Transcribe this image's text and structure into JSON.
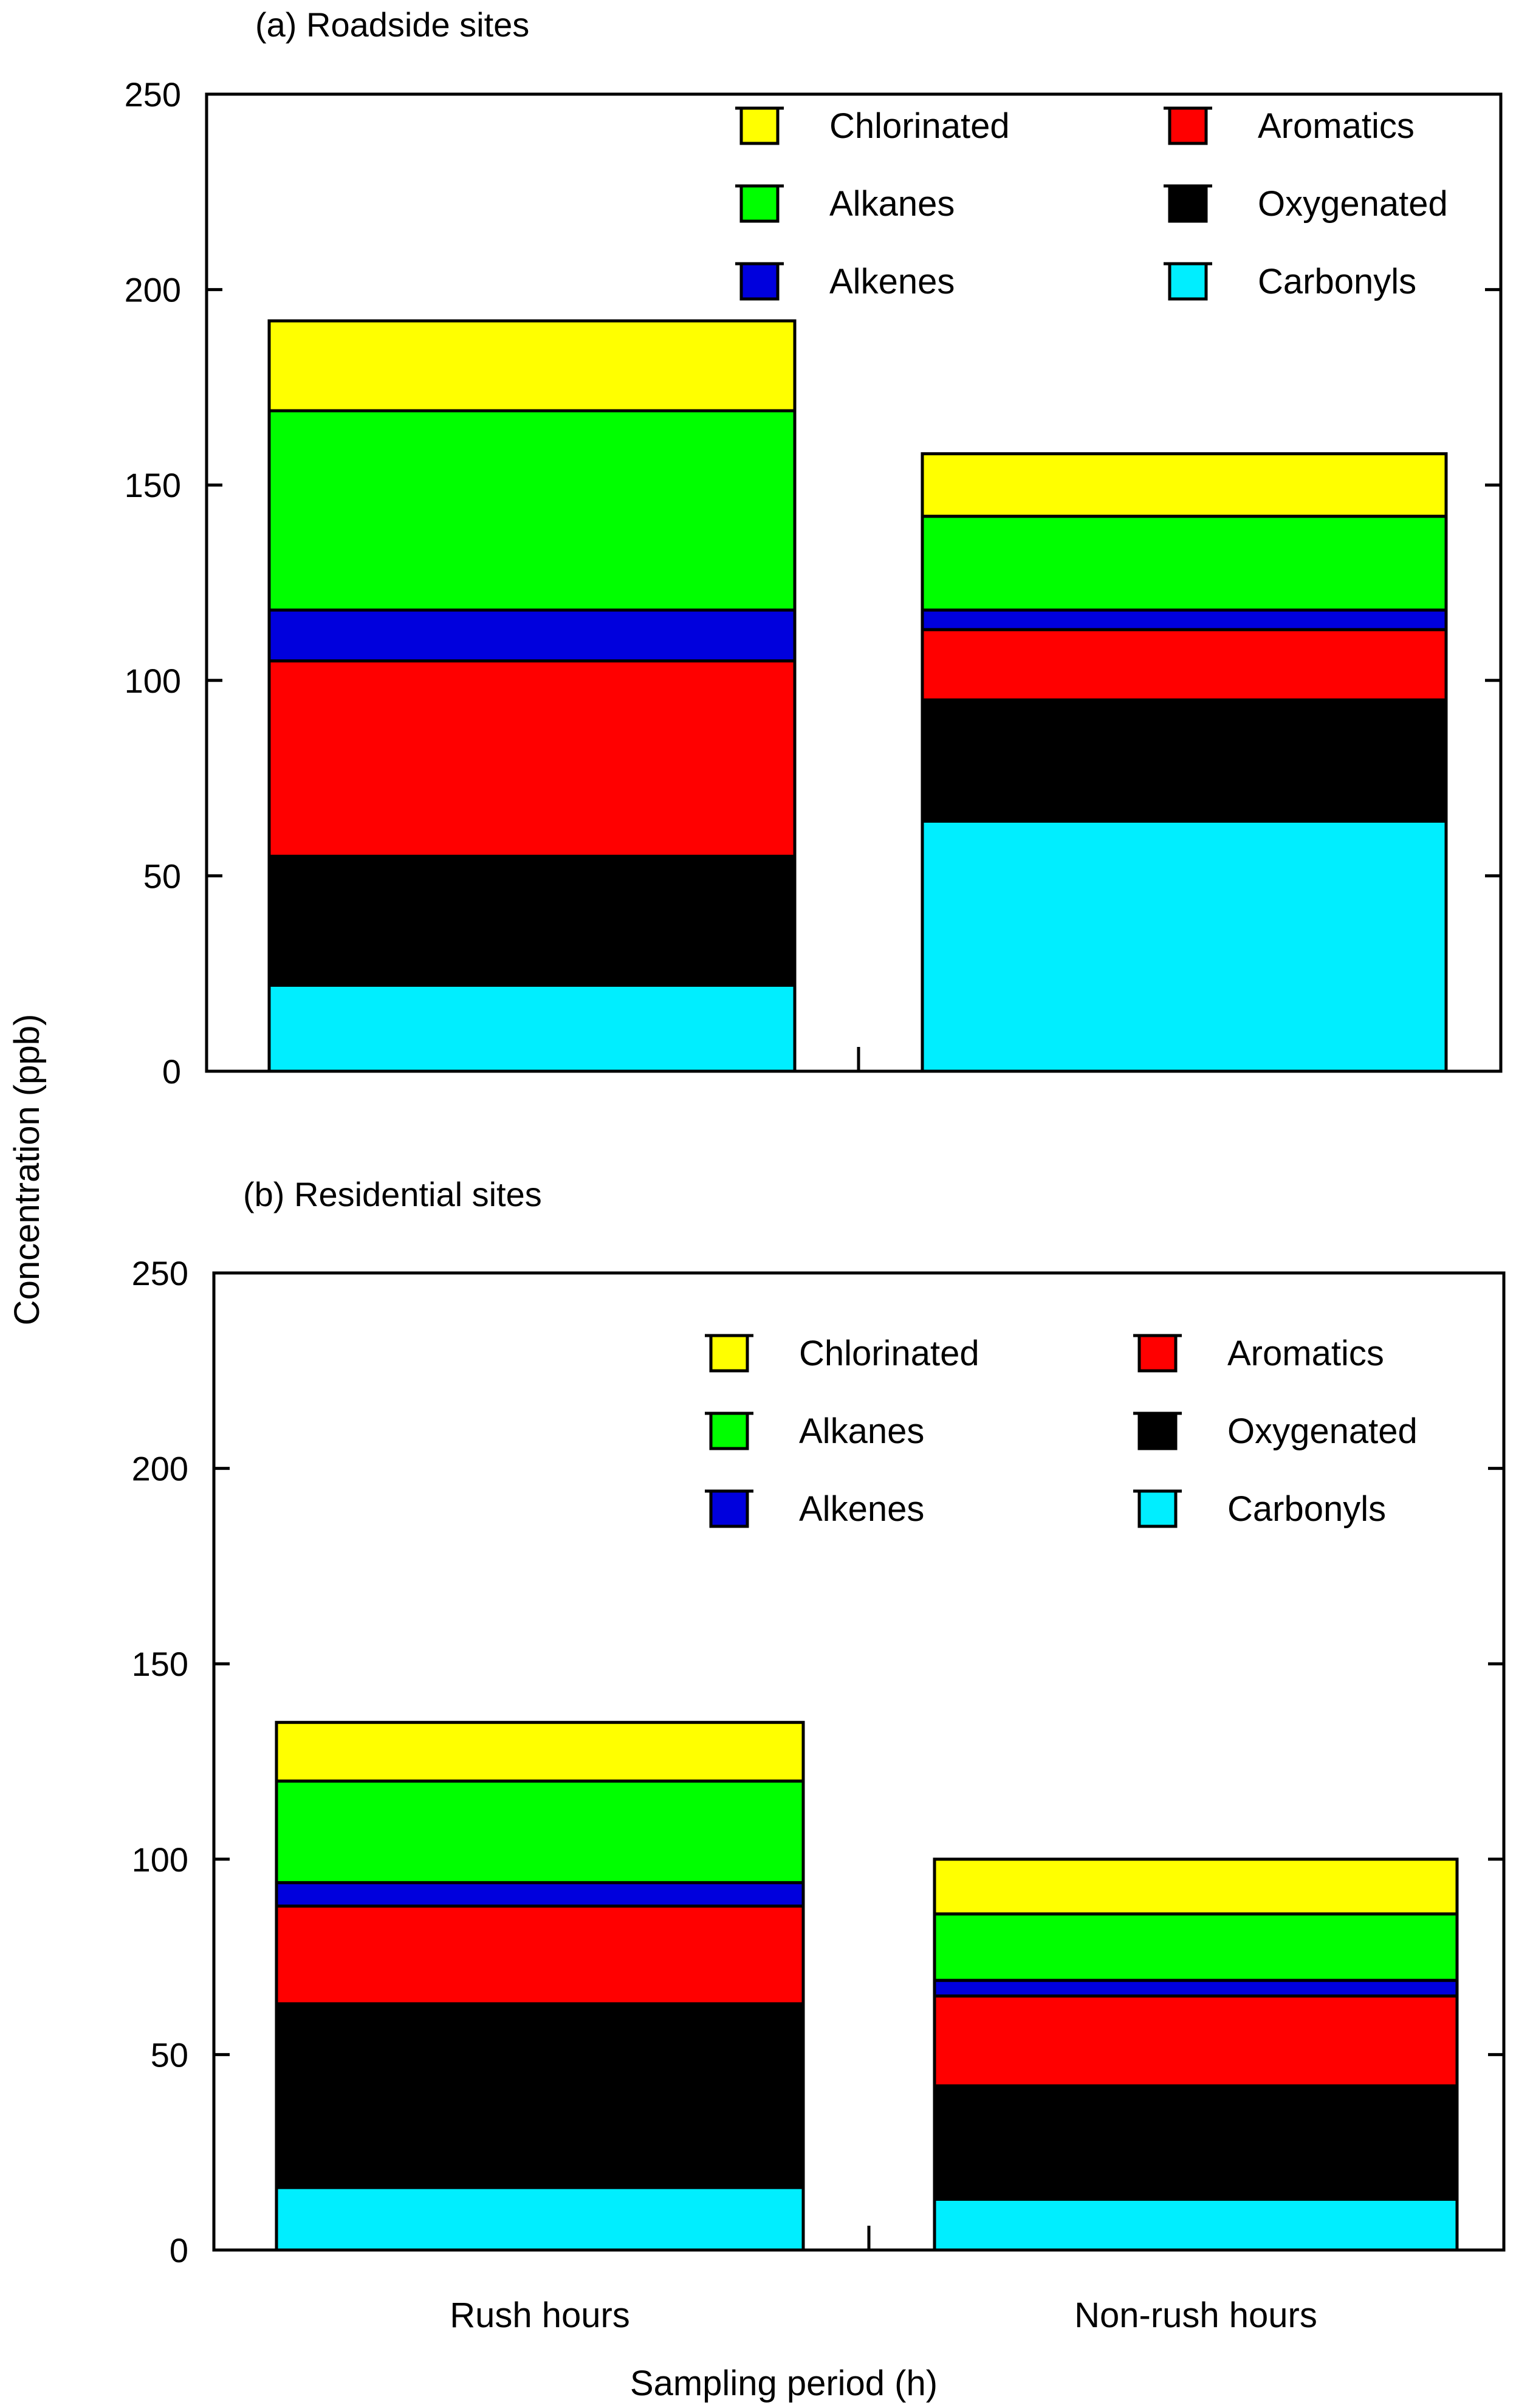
{
  "figure": {
    "ylabel": "Concentration (ppb)",
    "xlabel": "Sampling period (h)"
  },
  "colors": {
    "Chlorinated": "#ffff00",
    "Aromatics": "#ff0000",
    "Alkanes": "#00ff00",
    "Oxygenated": "#000000",
    "Alkenes": "#0000dd",
    "Carbonyls": "#00eeff"
  },
  "chart_data": [
    {
      "type": "bar",
      "stacked": true,
      "title": "(a) Roadside sites",
      "xlabel": "",
      "ylabel": "Concentration (ppb)",
      "ylim": [
        0,
        250
      ],
      "yticks": [
        0,
        50,
        100,
        150,
        200,
        250
      ],
      "categories": [
        "Rush hours",
        "Non-rush hours"
      ],
      "show_category_labels": false,
      "legend": {
        "position": "top-right",
        "entries": [
          "Chlorinated",
          "Aromatics",
          "Alkanes",
          "Oxygenated",
          "Alkenes",
          "Carbonyls"
        ]
      },
      "series": [
        {
          "name": "Carbonyls",
          "values": [
            22,
            64
          ]
        },
        {
          "name": "Oxygenated",
          "values": [
            33,
            31
          ]
        },
        {
          "name": "Aromatics",
          "values": [
            50,
            18
          ]
        },
        {
          "name": "Alkenes",
          "values": [
            13,
            5
          ]
        },
        {
          "name": "Alkanes",
          "values": [
            51,
            24
          ]
        },
        {
          "name": "Chlorinated",
          "values": [
            23,
            16
          ]
        }
      ]
    },
    {
      "type": "bar",
      "stacked": true,
      "title": "(b) Residential sites",
      "xlabel": "Sampling period (h)",
      "ylabel": "Concentration (ppb)",
      "ylim": [
        0,
        250
      ],
      "yticks": [
        0,
        50,
        100,
        150,
        200,
        250
      ],
      "categories": [
        "Rush hours",
        "Non-rush hours"
      ],
      "show_category_labels": true,
      "legend": {
        "position": "top-right",
        "entries": [
          "Chlorinated",
          "Aromatics",
          "Alkanes",
          "Oxygenated",
          "Alkenes",
          "Carbonyls"
        ]
      },
      "series": [
        {
          "name": "Carbonyls",
          "values": [
            16,
            13
          ]
        },
        {
          "name": "Oxygenated",
          "values": [
            47,
            29
          ]
        },
        {
          "name": "Aromatics",
          "values": [
            25,
            23
          ]
        },
        {
          "name": "Alkenes",
          "values": [
            6,
            4
          ]
        },
        {
          "name": "Alkanes",
          "values": [
            26,
            17
          ]
        },
        {
          "name": "Chlorinated",
          "values": [
            15,
            14
          ]
        }
      ]
    }
  ]
}
